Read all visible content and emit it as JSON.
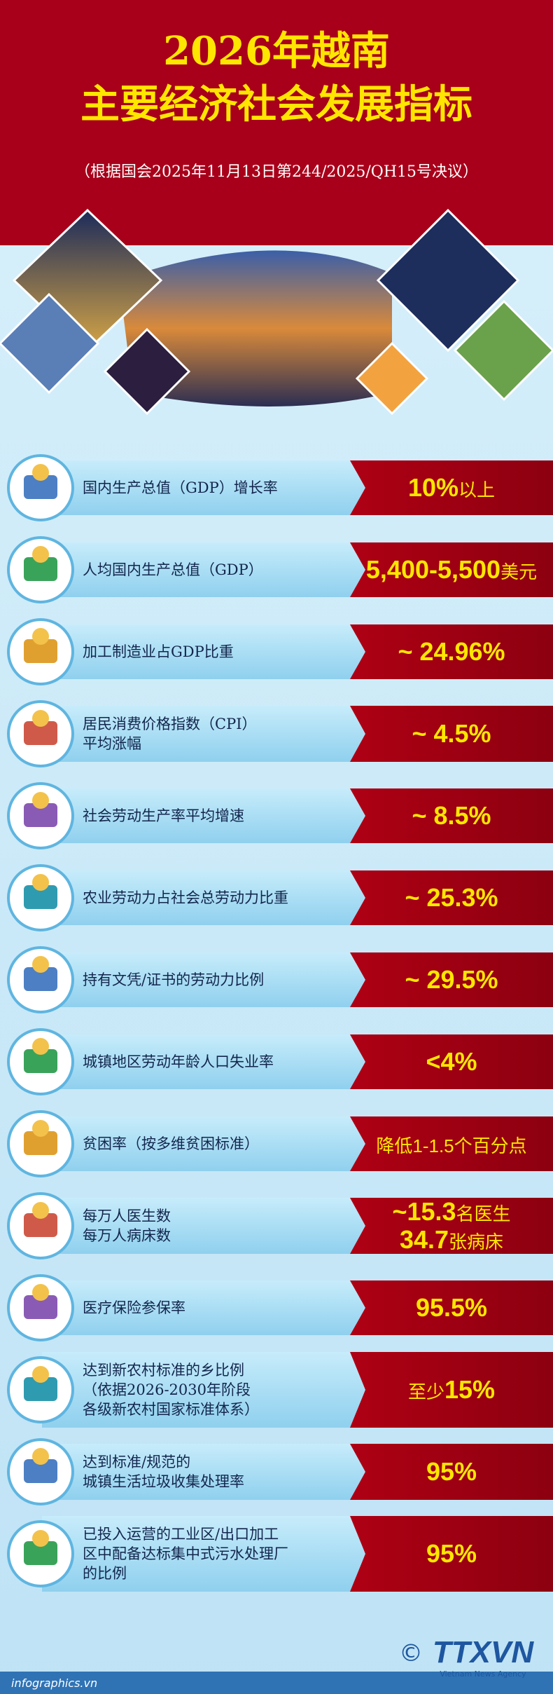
{
  "header": {
    "title_lines": [
      "2026年越南",
      "主要经济社会发展指标"
    ],
    "subtitle": "（根据国会2025年11月13日第244/2025/QH15号决议）"
  },
  "items": [
    {
      "label": [
        "国内生产总值（GDP）增长率"
      ],
      "value_lines": [
        {
          "main": "10%",
          "suffix": "以上"
        }
      ]
    },
    {
      "label": [
        "人均国内生产总值（GDP）"
      ],
      "value_lines": [
        {
          "main": "5,400-5,500",
          "suffix": "美元"
        }
      ]
    },
    {
      "label": [
        "加工制造业占GDP比重"
      ],
      "value_lines": [
        {
          "main": "~ 24.96%"
        }
      ]
    },
    {
      "label": [
        "居民消费价格指数（CPI）",
        "平均涨幅"
      ],
      "value_lines": [
        {
          "main": "~ 4.5%"
        }
      ]
    },
    {
      "label": [
        "社会劳动生产率平均增速"
      ],
      "value_lines": [
        {
          "main": "~ 8.5%"
        }
      ]
    },
    {
      "label": [
        "农业劳动力占社会总劳动力比重"
      ],
      "value_lines": [
        {
          "main": "~ 25.3%"
        }
      ]
    },
    {
      "label": [
        "持有文凭/证书的劳动力比例"
      ],
      "value_lines": [
        {
          "main": "~ 29.5%"
        }
      ]
    },
    {
      "label": [
        "城镇地区劳动年龄人口失业率"
      ],
      "value_lines": [
        {
          "main": "<4%"
        }
      ]
    },
    {
      "label": [
        "贫困率（按多维贫困标准）"
      ],
      "value_lines": [
        {
          "suffix": "降低1-1.5个百分点"
        }
      ]
    },
    {
      "label": [
        "每万人医生数",
        "每万人病床数"
      ],
      "value_lines": [
        {
          "main": "~15.3",
          "suffix": "名医生"
        },
        {
          "main": "34.7",
          "suffix": "张病床"
        }
      ]
    },
    {
      "label": [
        "医疗保险参保率"
      ],
      "value_lines": [
        {
          "main": "95.5%"
        }
      ]
    },
    {
      "label": [
        "达到新农村标准的乡比例",
        "（依据2026-2030年阶段",
        "各级新农村国家标准体系）"
      ],
      "value_lines": [
        {
          "prefix": "至少",
          "main": "15%"
        }
      ]
    },
    {
      "label": [
        "达到标准/规范的",
        "城镇生活垃圾收集处理率"
      ],
      "value_lines": [
        {
          "main": "95%"
        }
      ]
    },
    {
      "label": [
        "已投入运营的工业区/出口加工",
        "区中配备达标集中式污水处理厂",
        "的比例"
      ],
      "value_lines": [
        {
          "main": "95%"
        }
      ]
    }
  ],
  "footer": {
    "site": "infographics.vn",
    "copyright": "©",
    "logo": "TTXVN",
    "agency": "Vietnam News Agency"
  }
}
